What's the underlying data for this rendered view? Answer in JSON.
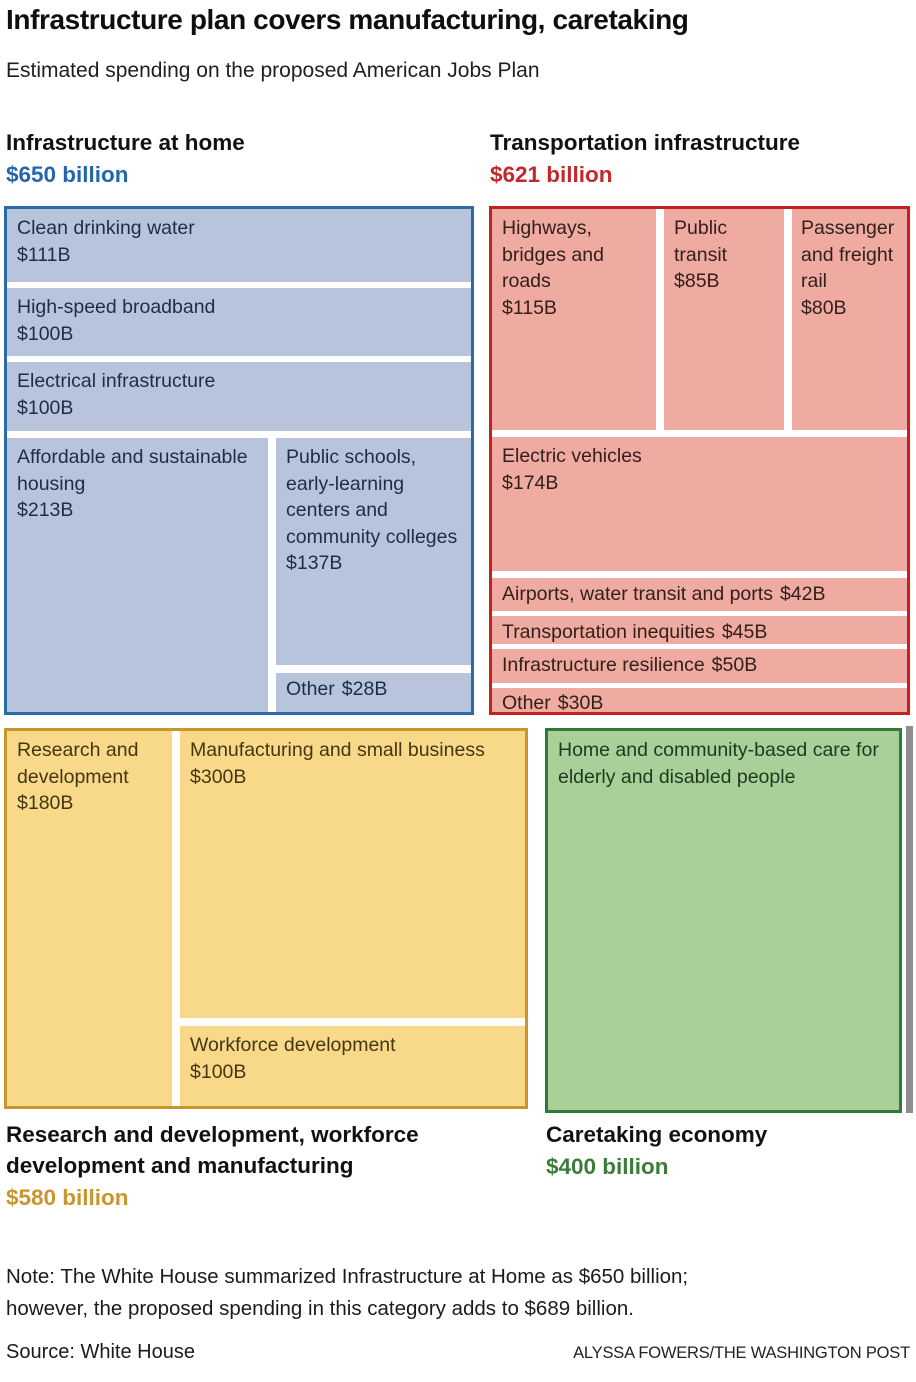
{
  "header": {
    "title": "Infrastructure plan covers manufacturing, caretaking",
    "subtitle": "Estimated spending on the proposed American Jobs Plan"
  },
  "colors": {
    "home_accent": "#2565ae",
    "transport_accent": "#c4282a",
    "research_accent": "#c9952c",
    "care_accent": "#3a7d3a",
    "home_fill": "#b8c4dc",
    "transport_fill": "#efaba2",
    "research_fill": "#f8d98a",
    "care_fill": "#aacf98",
    "home_border": "#2b6ba8",
    "transport_border": "#c3231f",
    "research_border": "#c9952c",
    "care_border": "#2e7b39"
  },
  "sections": {
    "home": {
      "name": "Infrastructure at home",
      "total": "$650 billion",
      "cells": {
        "water": {
          "label": "Clean drinking water",
          "value": "$111B"
        },
        "broadband": {
          "label": "High-speed broadband",
          "value": "$100B"
        },
        "electrical": {
          "label": "Electrical infrastructure",
          "value": "$100B"
        },
        "housing": {
          "label": "Affordable and sustainable housing",
          "value": "$213B"
        },
        "schools": {
          "label": "Public schools, early-learning centers and community colleges",
          "value": "$137B"
        },
        "other": {
          "label": "Other",
          "value": "$28B"
        }
      }
    },
    "transport": {
      "name": "Transportation infrastructure",
      "total": "$621 billion",
      "cells": {
        "highways": {
          "label": "Highways, bridges and roads",
          "value": "$115B"
        },
        "transit": {
          "label": "Public transit",
          "value": "$85B"
        },
        "rail": {
          "label": "Passenger and freight rail",
          "value": "$80B"
        },
        "ev": {
          "label": "Electric vehicles",
          "value": "$174B"
        },
        "airports": {
          "label": "Airports, water transit and ports",
          "value": "$42B"
        },
        "inequities": {
          "label": "Transportation inequities",
          "value": "$45B"
        },
        "resilience": {
          "label": "Infrastructure resilience",
          "value": "$50B"
        },
        "other": {
          "label": "Other",
          "value": "$30B"
        }
      }
    },
    "research": {
      "name": "Research and development, workforce development and manufacturing",
      "total": "$580 billion",
      "cells": {
        "rnd": {
          "label": "Research and development",
          "value": "$180B"
        },
        "manufacturing": {
          "label": "Manufacturing and small business",
          "value": "$300B"
        },
        "workforce": {
          "label": "Workforce development",
          "value": "$100B"
        }
      }
    },
    "care": {
      "name": "Caretaking economy",
      "total": "$400 billion",
      "cells": {
        "homecare": {
          "label": "Home and community-based care for elderly and disabled people"
        }
      }
    }
  },
  "footer": {
    "note_line1": "Note: The White House summarized Infrastructure at Home as $650 billion;",
    "note_line2": "however, the proposed spending in this category adds to $689 billion.",
    "source": "Source: White House",
    "credit": "ALYSSA FOWERS/THE WASHINGTON POST"
  },
  "chart_data": {
    "type": "treemap",
    "title": "Infrastructure plan covers manufacturing, caretaking",
    "subtitle": "Estimated spending on the proposed American Jobs Plan",
    "unit": "billions of USD",
    "groups": [
      {
        "name": "Infrastructure at home",
        "total": 650,
        "total_label": "$650 billion",
        "fill": "#b8c4dc",
        "border": "#2b6ba8",
        "items": [
          {
            "label": "Clean drinking water",
            "value": 111
          },
          {
            "label": "High-speed broadband",
            "value": 100
          },
          {
            "label": "Electrical infrastructure",
            "value": 100
          },
          {
            "label": "Affordable and sustainable housing",
            "value": 213
          },
          {
            "label": "Public schools, early-learning centers and community colleges",
            "value": 137
          },
          {
            "label": "Other",
            "value": 28
          }
        ]
      },
      {
        "name": "Transportation infrastructure",
        "total": 621,
        "total_label": "$621 billion",
        "fill": "#efaba2",
        "border": "#c3231f",
        "items": [
          {
            "label": "Highways, bridges and roads",
            "value": 115
          },
          {
            "label": "Public transit",
            "value": 85
          },
          {
            "label": "Passenger and freight rail",
            "value": 80
          },
          {
            "label": "Electric vehicles",
            "value": 174
          },
          {
            "label": "Airports, water transit and ports",
            "value": 42
          },
          {
            "label": "Transportation inequities",
            "value": 45
          },
          {
            "label": "Infrastructure resilience",
            "value": 50
          },
          {
            "label": "Other",
            "value": 30
          }
        ]
      },
      {
        "name": "Research and development, workforce development and manufacturing",
        "total": 580,
        "total_label": "$580 billion",
        "fill": "#f8d98a",
        "border": "#c9952c",
        "items": [
          {
            "label": "Research and development",
            "value": 180
          },
          {
            "label": "Manufacturing and small business",
            "value": 300
          },
          {
            "label": "Workforce development",
            "value": 100
          }
        ]
      },
      {
        "name": "Caretaking economy",
        "total": 400,
        "total_label": "$400 billion",
        "fill": "#aacf98",
        "border": "#2e7b39",
        "items": [
          {
            "label": "Home and community-based care for elderly and disabled people",
            "value": 400
          }
        ]
      }
    ],
    "note": "Note: The White House summarized Infrastructure at Home as $650 billion; however, the proposed spending in this category adds to $689 billion.",
    "source": "White House",
    "credit": "ALYSSA FOWERS/THE WASHINGTON POST"
  }
}
